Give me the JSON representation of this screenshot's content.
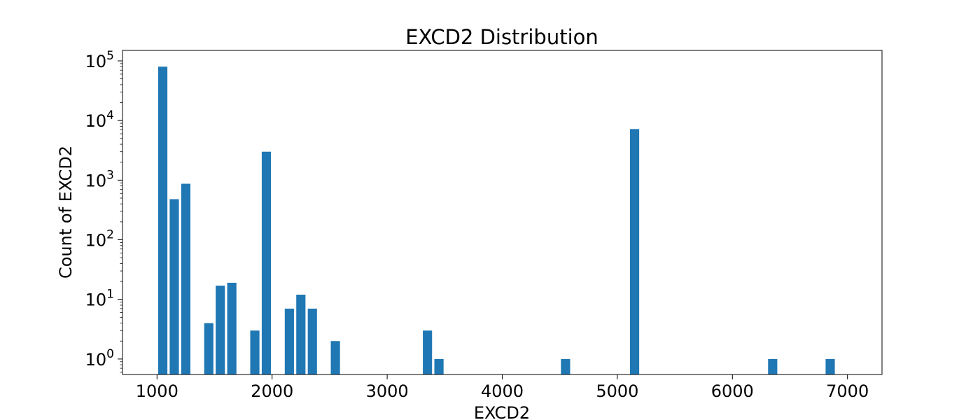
{
  "chart_data": {
    "type": "bar",
    "title": "EXCD2 Distribution",
    "xlabel": "EXCD2",
    "ylabel": "Count of EXCD2",
    "yscale": "log",
    "xlim": [
      700,
      7300
    ],
    "ylim": [
      0.55,
      150000
    ],
    "xticks": [
      1000,
      2000,
      3000,
      4000,
      5000,
      6000,
      7000
    ],
    "yticks": [
      {
        "value": 1,
        "base": "10",
        "exp": "0"
      },
      {
        "value": 10,
        "base": "10",
        "exp": "1"
      },
      {
        "value": 100,
        "base": "10",
        "exp": "2"
      },
      {
        "value": 1000,
        "base": "10",
        "exp": "3"
      },
      {
        "value": 10000,
        "base": "10",
        "exp": "4"
      },
      {
        "value": 100000,
        "base": "10",
        "exp": "5"
      }
    ],
    "bar_width": 80,
    "color": "#1f77b4",
    "grid": false,
    "points": [
      {
        "x": 1050,
        "y": 80000
      },
      {
        "x": 1150,
        "y": 480
      },
      {
        "x": 1250,
        "y": 870
      },
      {
        "x": 1450,
        "y": 4
      },
      {
        "x": 1550,
        "y": 17
      },
      {
        "x": 1650,
        "y": 19
      },
      {
        "x": 1850,
        "y": 3
      },
      {
        "x": 1950,
        "y": 3000
      },
      {
        "x": 2150,
        "y": 7
      },
      {
        "x": 2250,
        "y": 12
      },
      {
        "x": 2350,
        "y": 7
      },
      {
        "x": 2550,
        "y": 2
      },
      {
        "x": 3350,
        "y": 3
      },
      {
        "x": 3450,
        "y": 1
      },
      {
        "x": 4550,
        "y": 1
      },
      {
        "x": 5150,
        "y": 7200
      },
      {
        "x": 6350,
        "y": 1
      },
      {
        "x": 6850,
        "y": 1
      }
    ]
  }
}
